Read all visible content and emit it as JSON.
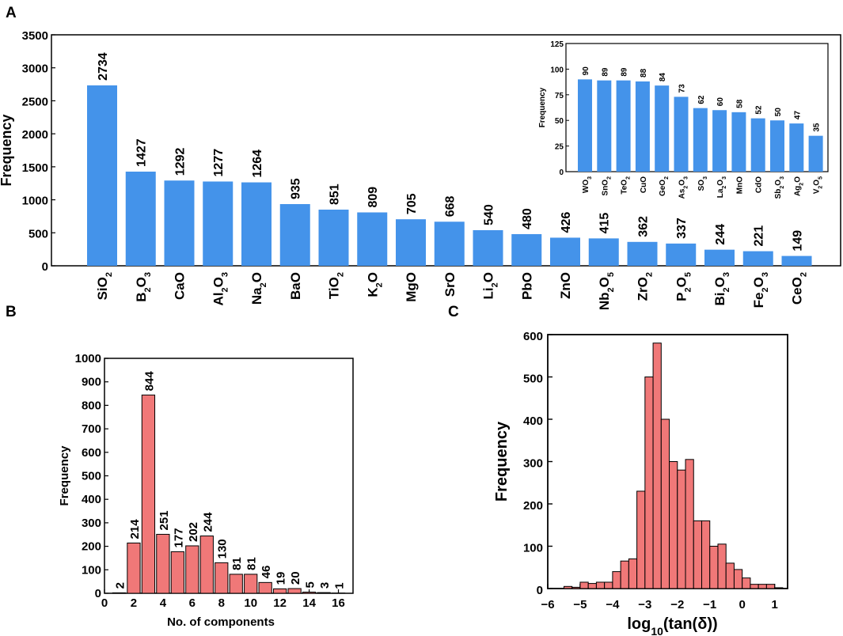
{
  "panels": {
    "a": "A",
    "b": "B",
    "c": "C"
  },
  "colors": {
    "blue_bar": "#4493ea",
    "red_bar": "#f07878",
    "axis": "#000000"
  },
  "chart_data": [
    {
      "id": "A-main",
      "type": "bar",
      "categories": [
        "SiO2",
        "B2O3",
        "CaO",
        "Al2O3",
        "Na2O",
        "BaO",
        "TiO2",
        "K2O",
        "MgO",
        "SrO",
        "Li2O",
        "PbO",
        "ZnO",
        "Nb2O5",
        "ZrO2",
        "P2O5",
        "Bi2O3",
        "Fe2O3",
        "CeO2"
      ],
      "category_labels": [
        {
          "base": "SiO",
          "sub": "2",
          "tail": ""
        },
        {
          "base": "B",
          "sub": "2",
          "tail": "O",
          "sub2": "3"
        },
        {
          "base": "CaO",
          "sub": "",
          "tail": ""
        },
        {
          "base": "Al",
          "sub": "2",
          "tail": "O",
          "sub2": "3"
        },
        {
          "base": "Na",
          "sub": "2",
          "tail": "O"
        },
        {
          "base": "BaO",
          "sub": "",
          "tail": ""
        },
        {
          "base": "TiO",
          "sub": "2",
          "tail": ""
        },
        {
          "base": "K",
          "sub": "2",
          "tail": "O"
        },
        {
          "base": "MgO",
          "sub": "",
          "tail": ""
        },
        {
          "base": "SrO",
          "sub": "",
          "tail": ""
        },
        {
          "base": "Li",
          "sub": "2",
          "tail": "O"
        },
        {
          "base": "PbO",
          "sub": "",
          "tail": ""
        },
        {
          "base": "ZnO",
          "sub": "",
          "tail": ""
        },
        {
          "base": "Nb",
          "sub": "2",
          "tail": "O",
          "sub2": "5"
        },
        {
          "base": "ZrO",
          "sub": "2",
          "tail": ""
        },
        {
          "base": "P",
          "sub": "2",
          "tail": "O",
          "sub2": "5"
        },
        {
          "base": "Bi",
          "sub": "2",
          "tail": "O",
          "sub2": "3"
        },
        {
          "base": "Fe",
          "sub": "2",
          "tail": "O",
          "sub2": "3"
        },
        {
          "base": "CeO",
          "sub": "2",
          "tail": ""
        }
      ],
      "values": [
        2734,
        1427,
        1292,
        1277,
        1264,
        935,
        851,
        809,
        705,
        668,
        540,
        480,
        426,
        415,
        362,
        337,
        244,
        221,
        149
      ],
      "title": "",
      "xlabel": "",
      "ylabel": "Frequency",
      "ylim": [
        0,
        3500
      ],
      "yticks": [
        0,
        500,
        1000,
        1500,
        2000,
        2500,
        3000,
        3500
      ],
      "grid": false
    },
    {
      "id": "A-inset",
      "type": "bar",
      "categories": [
        "WO3",
        "SnO2",
        "TeO2",
        "CuO",
        "GeO2",
        "As2O3",
        "SO3",
        "La2O3",
        "MnO",
        "CdO",
        "Sb2O3",
        "Ag2O",
        "V2O5"
      ],
      "category_labels": [
        {
          "base": "WO",
          "sub": "3",
          "tail": ""
        },
        {
          "base": "SnO",
          "sub": "2",
          "tail": ""
        },
        {
          "base": "TeO",
          "sub": "2",
          "tail": ""
        },
        {
          "base": "CuO",
          "sub": "",
          "tail": ""
        },
        {
          "base": "GeO",
          "sub": "2",
          "tail": ""
        },
        {
          "base": "As",
          "sub": "2",
          "tail": "O",
          "sub2": "3"
        },
        {
          "base": "SO",
          "sub": "3",
          "tail": ""
        },
        {
          "base": "La",
          "sub": "2",
          "tail": "O",
          "sub2": "3"
        },
        {
          "base": "MnO",
          "sub": "",
          "tail": ""
        },
        {
          "base": "CdO",
          "sub": "",
          "tail": ""
        },
        {
          "base": "Sb",
          "sub": "2",
          "tail": "O",
          "sub2": "3"
        },
        {
          "base": "Ag",
          "sub": "2",
          "tail": "O"
        },
        {
          "base": "V",
          "sub": "2",
          "tail": "O",
          "sub2": "5"
        }
      ],
      "values": [
        90,
        89,
        89,
        88,
        84,
        73,
        62,
        60,
        58,
        52,
        50,
        47,
        35
      ],
      "xlabel": "",
      "ylabel": "Frequency",
      "ylim": [
        0,
        125
      ],
      "yticks": [
        0,
        25,
        50,
        75,
        100,
        125
      ],
      "grid": false
    },
    {
      "id": "B",
      "type": "bar",
      "x": [
        1,
        2,
        3,
        4,
        5,
        6,
        7,
        8,
        9,
        10,
        11,
        12,
        13,
        14,
        15,
        16
      ],
      "values": [
        2,
        214,
        844,
        251,
        177,
        202,
        244,
        130,
        81,
        81,
        46,
        19,
        20,
        5,
        3,
        1
      ],
      "xlabel": "No. of components",
      "ylabel": "Frequency",
      "xlim": [
        0,
        17
      ],
      "ylim": [
        0,
        1000
      ],
      "xticks": [
        0,
        2,
        4,
        6,
        8,
        10,
        12,
        14,
        16
      ],
      "yticks": [
        0,
        100,
        200,
        300,
        400,
        500,
        600,
        700,
        800,
        900,
        1000
      ],
      "grid": false
    },
    {
      "id": "C",
      "type": "bar",
      "bin_edges": [
        -5.5,
        -5.25,
        -5.0,
        -4.75,
        -4.5,
        -4.25,
        -4.0,
        -3.75,
        -3.5,
        -3.25,
        -3.0,
        -2.75,
        -2.5,
        -2.25,
        -2.0,
        -1.75,
        -1.5,
        -1.25,
        -1.0,
        -0.75,
        -0.5,
        -0.25,
        0.0,
        0.25,
        0.5,
        0.75,
        1.0,
        1.25
      ],
      "values": [
        5,
        3,
        15,
        12,
        15,
        15,
        40,
        65,
        70,
        230,
        500,
        580,
        400,
        300,
        280,
        305,
        160,
        160,
        100,
        105,
        60,
        45,
        25,
        10,
        10,
        10,
        2
      ],
      "xlabel": "log10(tan(δ))",
      "xlabel_parts": {
        "pre": "log",
        "sub": "10",
        "post": "(tan(δ))"
      },
      "ylabel": "Frequency",
      "xlim": [
        -6,
        1.4
      ],
      "ylim": [
        0,
        600
      ],
      "xticks": [
        -6,
        -5,
        -4,
        -3,
        -2,
        -1,
        0,
        1
      ],
      "xtick_labels": [
        "−6",
        "−5",
        "−4",
        "−3",
        "−2",
        "−1",
        "0",
        "1"
      ],
      "yticks": [
        0,
        100,
        200,
        300,
        400,
        500,
        600
      ],
      "grid": false
    }
  ]
}
